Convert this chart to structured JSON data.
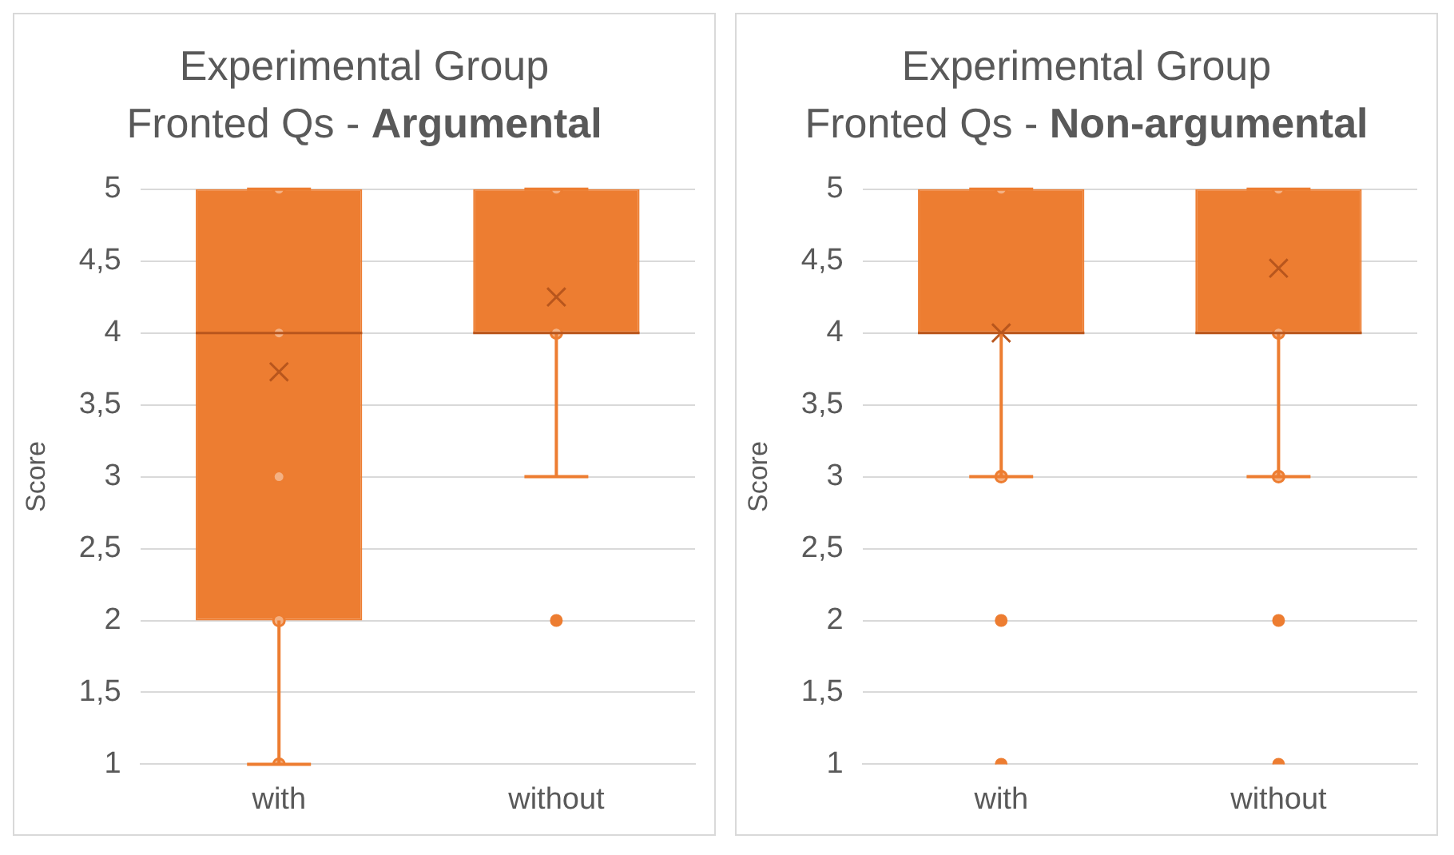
{
  "chart_data": [
    {
      "type": "box",
      "title": "Experimental Group",
      "subtitle": "Fronted Qs - Argumental",
      "ylabel": "Score",
      "categories": [
        "with",
        "without"
      ],
      "color": "#ed7d31",
      "ylim": [
        1,
        5
      ],
      "yticks": [
        1,
        {
          "value": 1.5,
          "label": "1,5"
        },
        2,
        {
          "value": 2.5,
          "label": "2,5"
        },
        3,
        {
          "value": 3.5,
          "label": "3,5"
        },
        4,
        {
          "value": 4.5,
          "label": "4,5"
        },
        5
      ],
      "grid": "y",
      "marker": "circle",
      "boxes": [
        {
          "low": 1,
          "q1": 2,
          "median": 4,
          "q3": 5,
          "high": 5,
          "mean": 3.73
        },
        {
          "low": 3,
          "q1": 4,
          "median": 4,
          "q3": 5,
          "high": 5,
          "mean": 4.25,
          "outliers": [
            2
          ]
        }
      ],
      "series": [
        {
          "type": "scatter",
          "color": "#ed7d31",
          "x": [
            "with",
            "with",
            "with",
            "with",
            "with",
            "without",
            "without"
          ],
          "values": [
            1,
            2,
            3,
            4,
            5,
            4,
            5
          ]
        }
      ]
    },
    {
      "type": "box",
      "title": "Experimental Group",
      "subtitle": "Fronted Qs - Non-argumental",
      "ylabel": "Score",
      "categories": [
        "with",
        "without"
      ],
      "color": "#ed7d31",
      "ylim": [
        1,
        5
      ],
      "yticks": [
        1,
        {
          "value": 1.5,
          "label": "1,5"
        },
        2,
        {
          "value": 2.5,
          "label": "2,5"
        },
        3,
        {
          "value": 3.5,
          "label": "3,5"
        },
        4,
        {
          "value": 4.5,
          "label": "4,5"
        },
        5
      ],
      "grid": "y",
      "marker": "circle",
      "boxes": [
        {
          "low": 3,
          "q1": 4,
          "median": 4,
          "q3": 5,
          "high": 5,
          "mean": 4.0,
          "outliers": [
            2,
            1
          ]
        },
        {
          "low": 3,
          "q1": 4,
          "median": 4,
          "q3": 5,
          "high": 5,
          "mean": 4.45,
          "outliers": [
            2,
            1
          ]
        }
      ],
      "series": [
        {
          "type": "scatter",
          "color": "#ed7d31",
          "x": [
            "with",
            "with",
            "without",
            "without",
            "without"
          ],
          "values": [
            3,
            5,
            3,
            4,
            5
          ]
        }
      ]
    }
  ]
}
